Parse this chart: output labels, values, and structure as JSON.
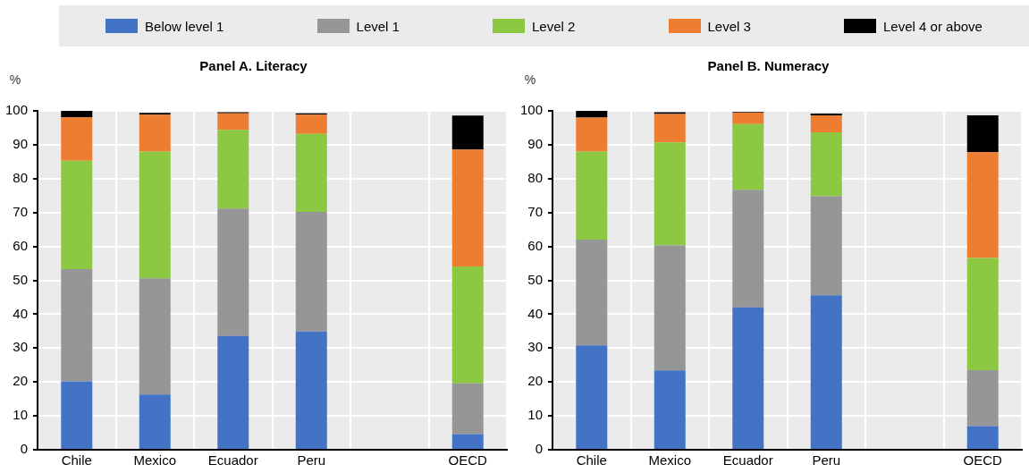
{
  "chart_data": [
    {
      "type": "bar",
      "title": "Panel A. Literacy",
      "ylabel": "%",
      "stacked": true,
      "legend": "top",
      "grid": true,
      "categories": [
        "Chile",
        "Mexico",
        "Ecuador",
        "Peru",
        null,
        "OECD"
      ],
      "ylim": [
        0,
        100
      ],
      "yticks": [
        0,
        10,
        20,
        30,
        40,
        50,
        60,
        70,
        80,
        90,
        100
      ],
      "series": [
        {
          "name": "Below level 1",
          "color": "#4472c4",
          "values": [
            20.2,
            16.3,
            33.6,
            34.9,
            null,
            4.6
          ]
        },
        {
          "name": "Level 1",
          "color": "#969696",
          "values": [
            33.1,
            34.3,
            37.6,
            35.3,
            null,
            15.0
          ]
        },
        {
          "name": "Level 2",
          "color": "#8cc841",
          "values": [
            32.0,
            37.4,
            23.2,
            23.0,
            null,
            34.5
          ]
        },
        {
          "name": "Level 3",
          "color": "#ed7d31",
          "values": [
            12.8,
            10.9,
            4.9,
            5.7,
            null,
            34.5
          ]
        },
        {
          "name": "Level 4 or above",
          "color": "#000000",
          "values": [
            1.9,
            0.5,
            0.3,
            0.4,
            null,
            10.0
          ]
        }
      ]
    },
    {
      "type": "bar",
      "title": "Panel B. Numeracy",
      "ylabel": "%",
      "stacked": true,
      "grid": true,
      "categories": [
        "Chile",
        "Mexico",
        "Ecuador",
        "Peru",
        null,
        "OECD"
      ],
      "ylim": [
        0,
        100
      ],
      "yticks": [
        0,
        10,
        20,
        30,
        40,
        50,
        60,
        70,
        80,
        90,
        100
      ],
      "series": [
        {
          "color": "#4472c4",
          "values": [
            30.8,
            23.4,
            42.0,
            45.6,
            null,
            7.0
          ]
        },
        {
          "color": "#969696",
          "values": [
            31.2,
            36.9,
            34.7,
            29.2,
            null,
            16.5
          ]
        },
        {
          "color": "#8cc841",
          "values": [
            26.0,
            30.4,
            19.4,
            18.9,
            null,
            33.1
          ]
        },
        {
          "color": "#ed7d31",
          "values": [
            10.0,
            8.4,
            3.4,
            5.0,
            null,
            31.2
          ]
        },
        {
          "color": "#000000",
          "values": [
            2.0,
            0.5,
            0.2,
            0.5,
            null,
            10.9
          ]
        }
      ]
    }
  ]
}
